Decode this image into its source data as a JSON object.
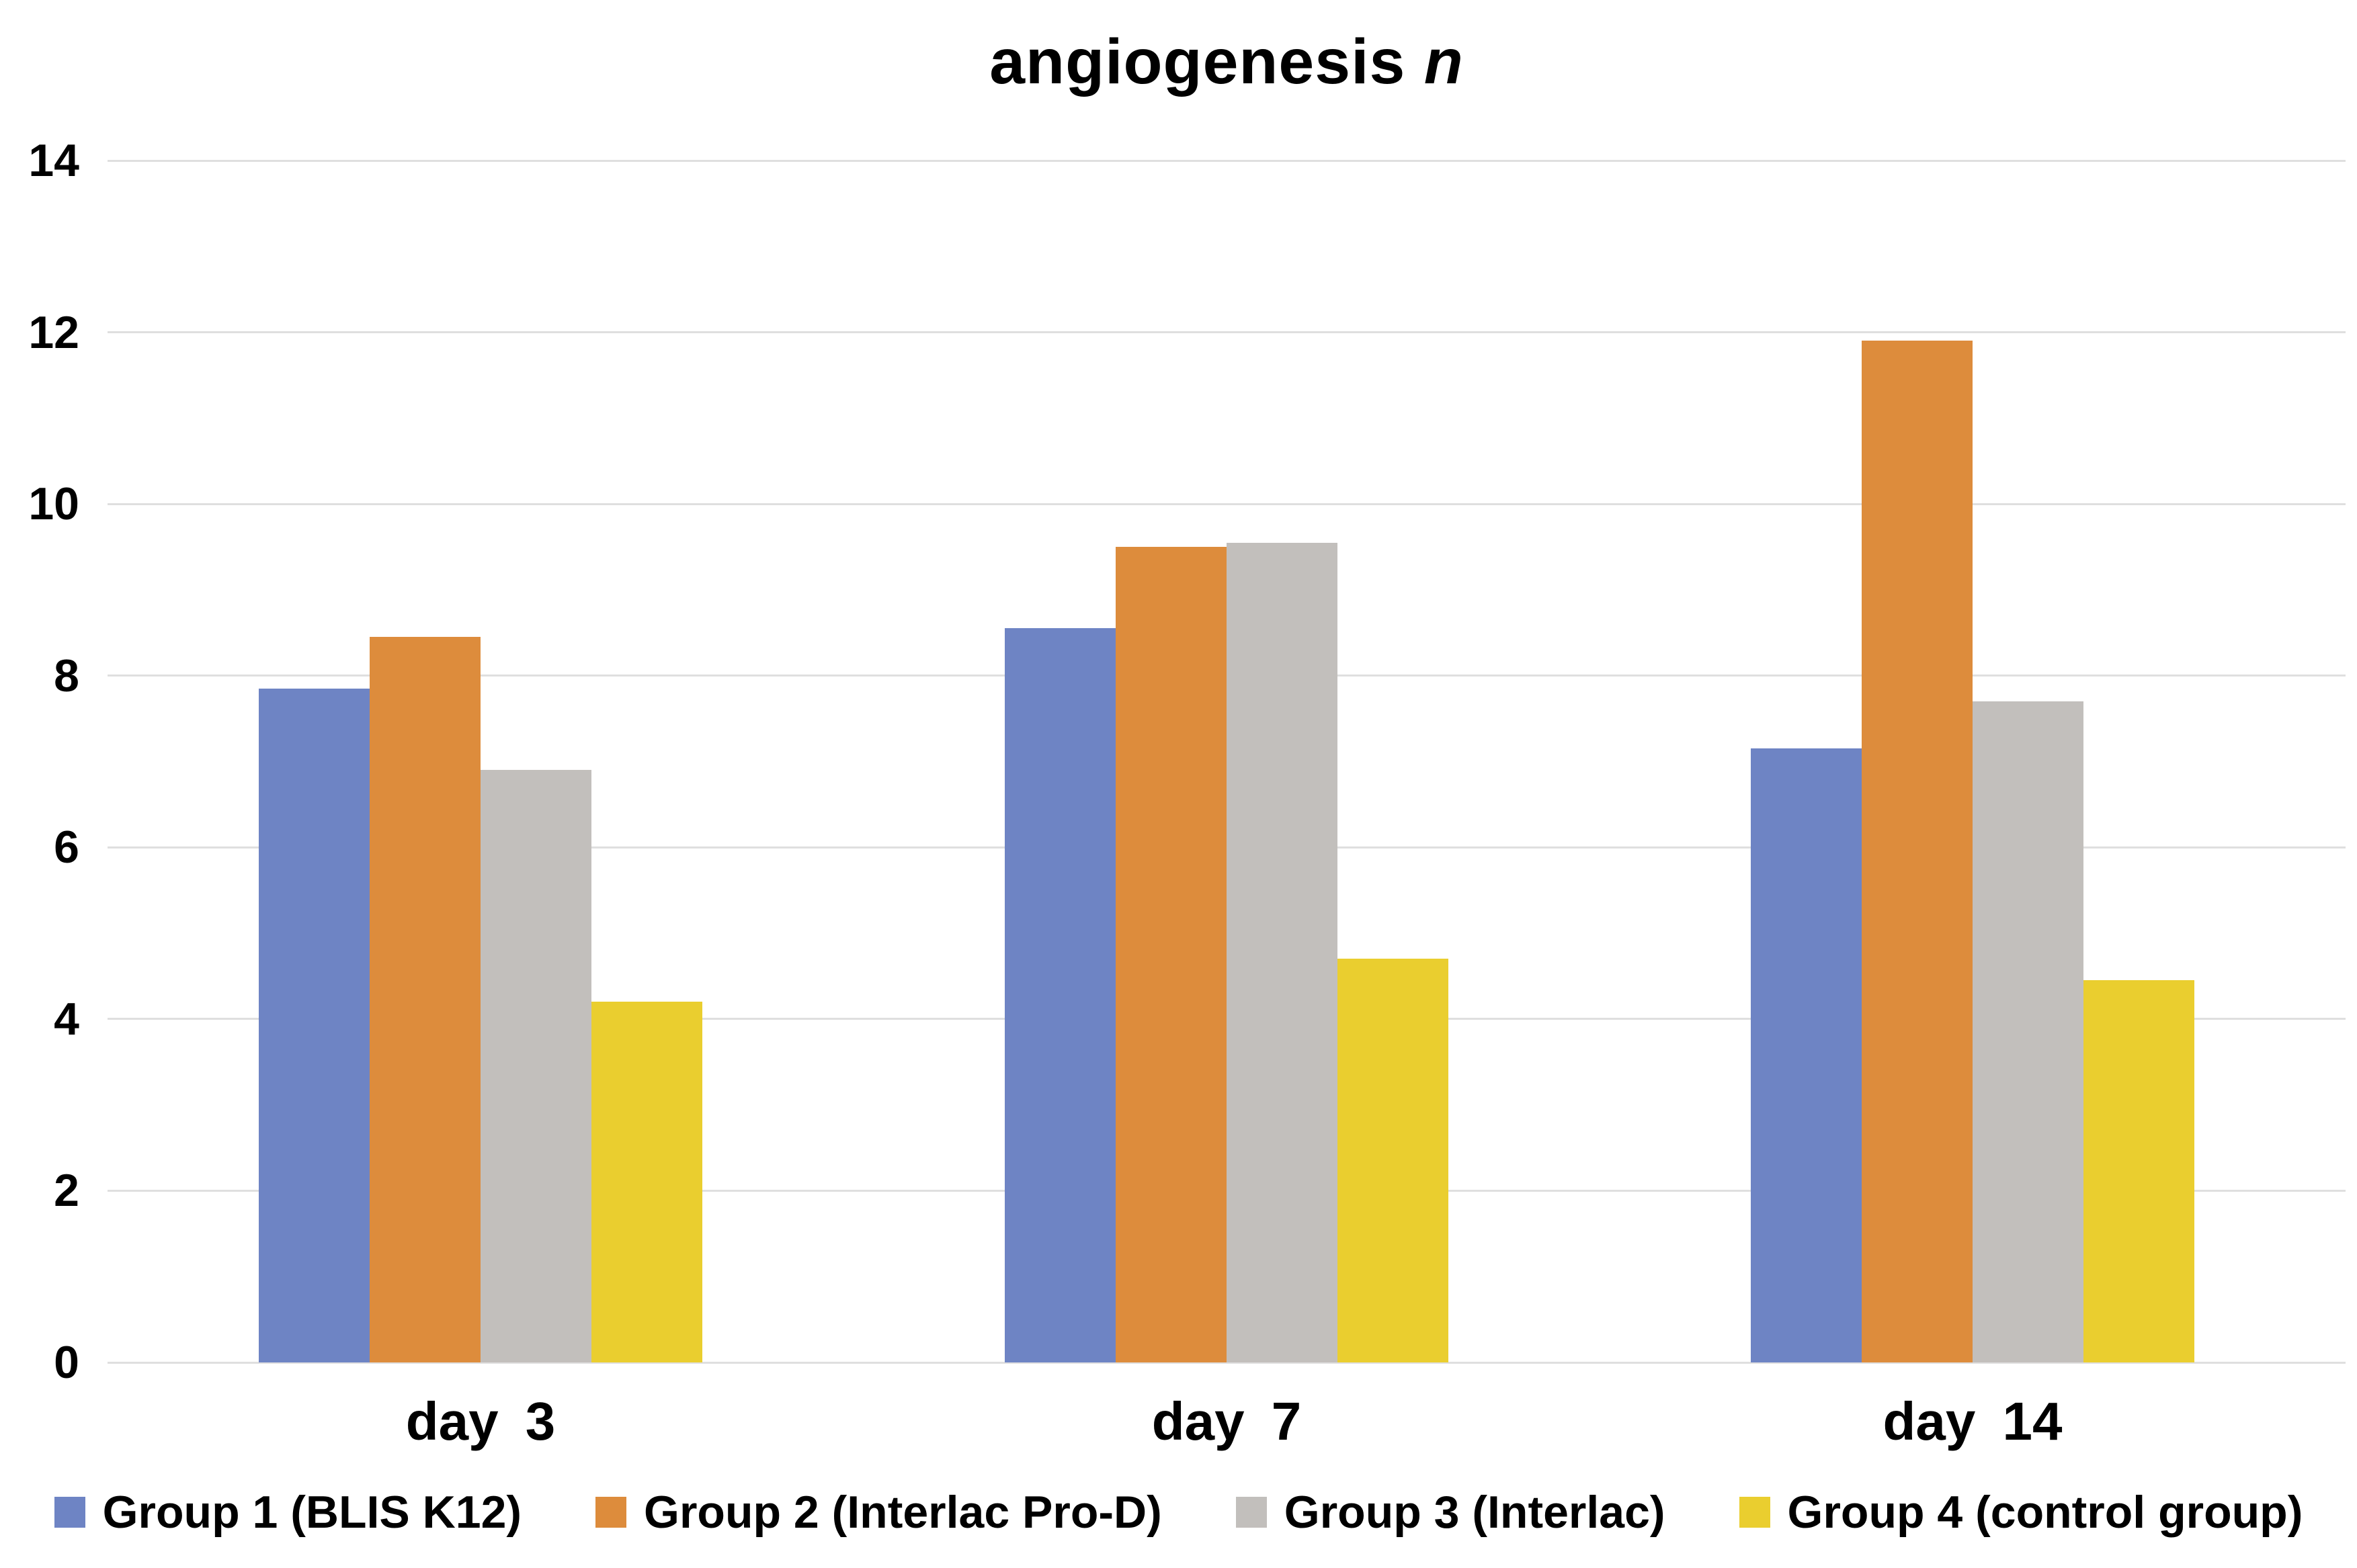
{
  "chart_data": {
    "type": "bar",
    "title": "angiogenesis n",
    "title_main": "angiogenesis",
    "title_italic": "n",
    "categories": [
      "day 3",
      "day 7",
      "day 14"
    ],
    "series": [
      {
        "name": "Group 1 (BLIS K12)",
        "color": "#6E84C4",
        "values": [
          7.85,
          8.55,
          7.15
        ]
      },
      {
        "name": "Group 2 (Interlac Pro-D)",
        "color": "#DD8C3C",
        "values": [
          8.45,
          9.5,
          11.9
        ]
      },
      {
        "name": "Group 3 (Interlac)",
        "color": "#C2BFBC",
        "values": [
          6.9,
          9.55,
          7.7
        ]
      },
      {
        "name": "Group 4 (control group)",
        "color": "#EACE2F",
        "values": [
          4.2,
          4.7,
          4.45
        ]
      }
    ],
    "ylim": [
      0,
      14
    ],
    "ytick_step": 2,
    "yticks": [
      0,
      2,
      4,
      6,
      8,
      10,
      12,
      14
    ],
    "grid": true,
    "gridline_color": "#dfdfdf",
    "legend_position": "bottom",
    "background_color": "#ffffff",
    "text_color": "#000000"
  }
}
